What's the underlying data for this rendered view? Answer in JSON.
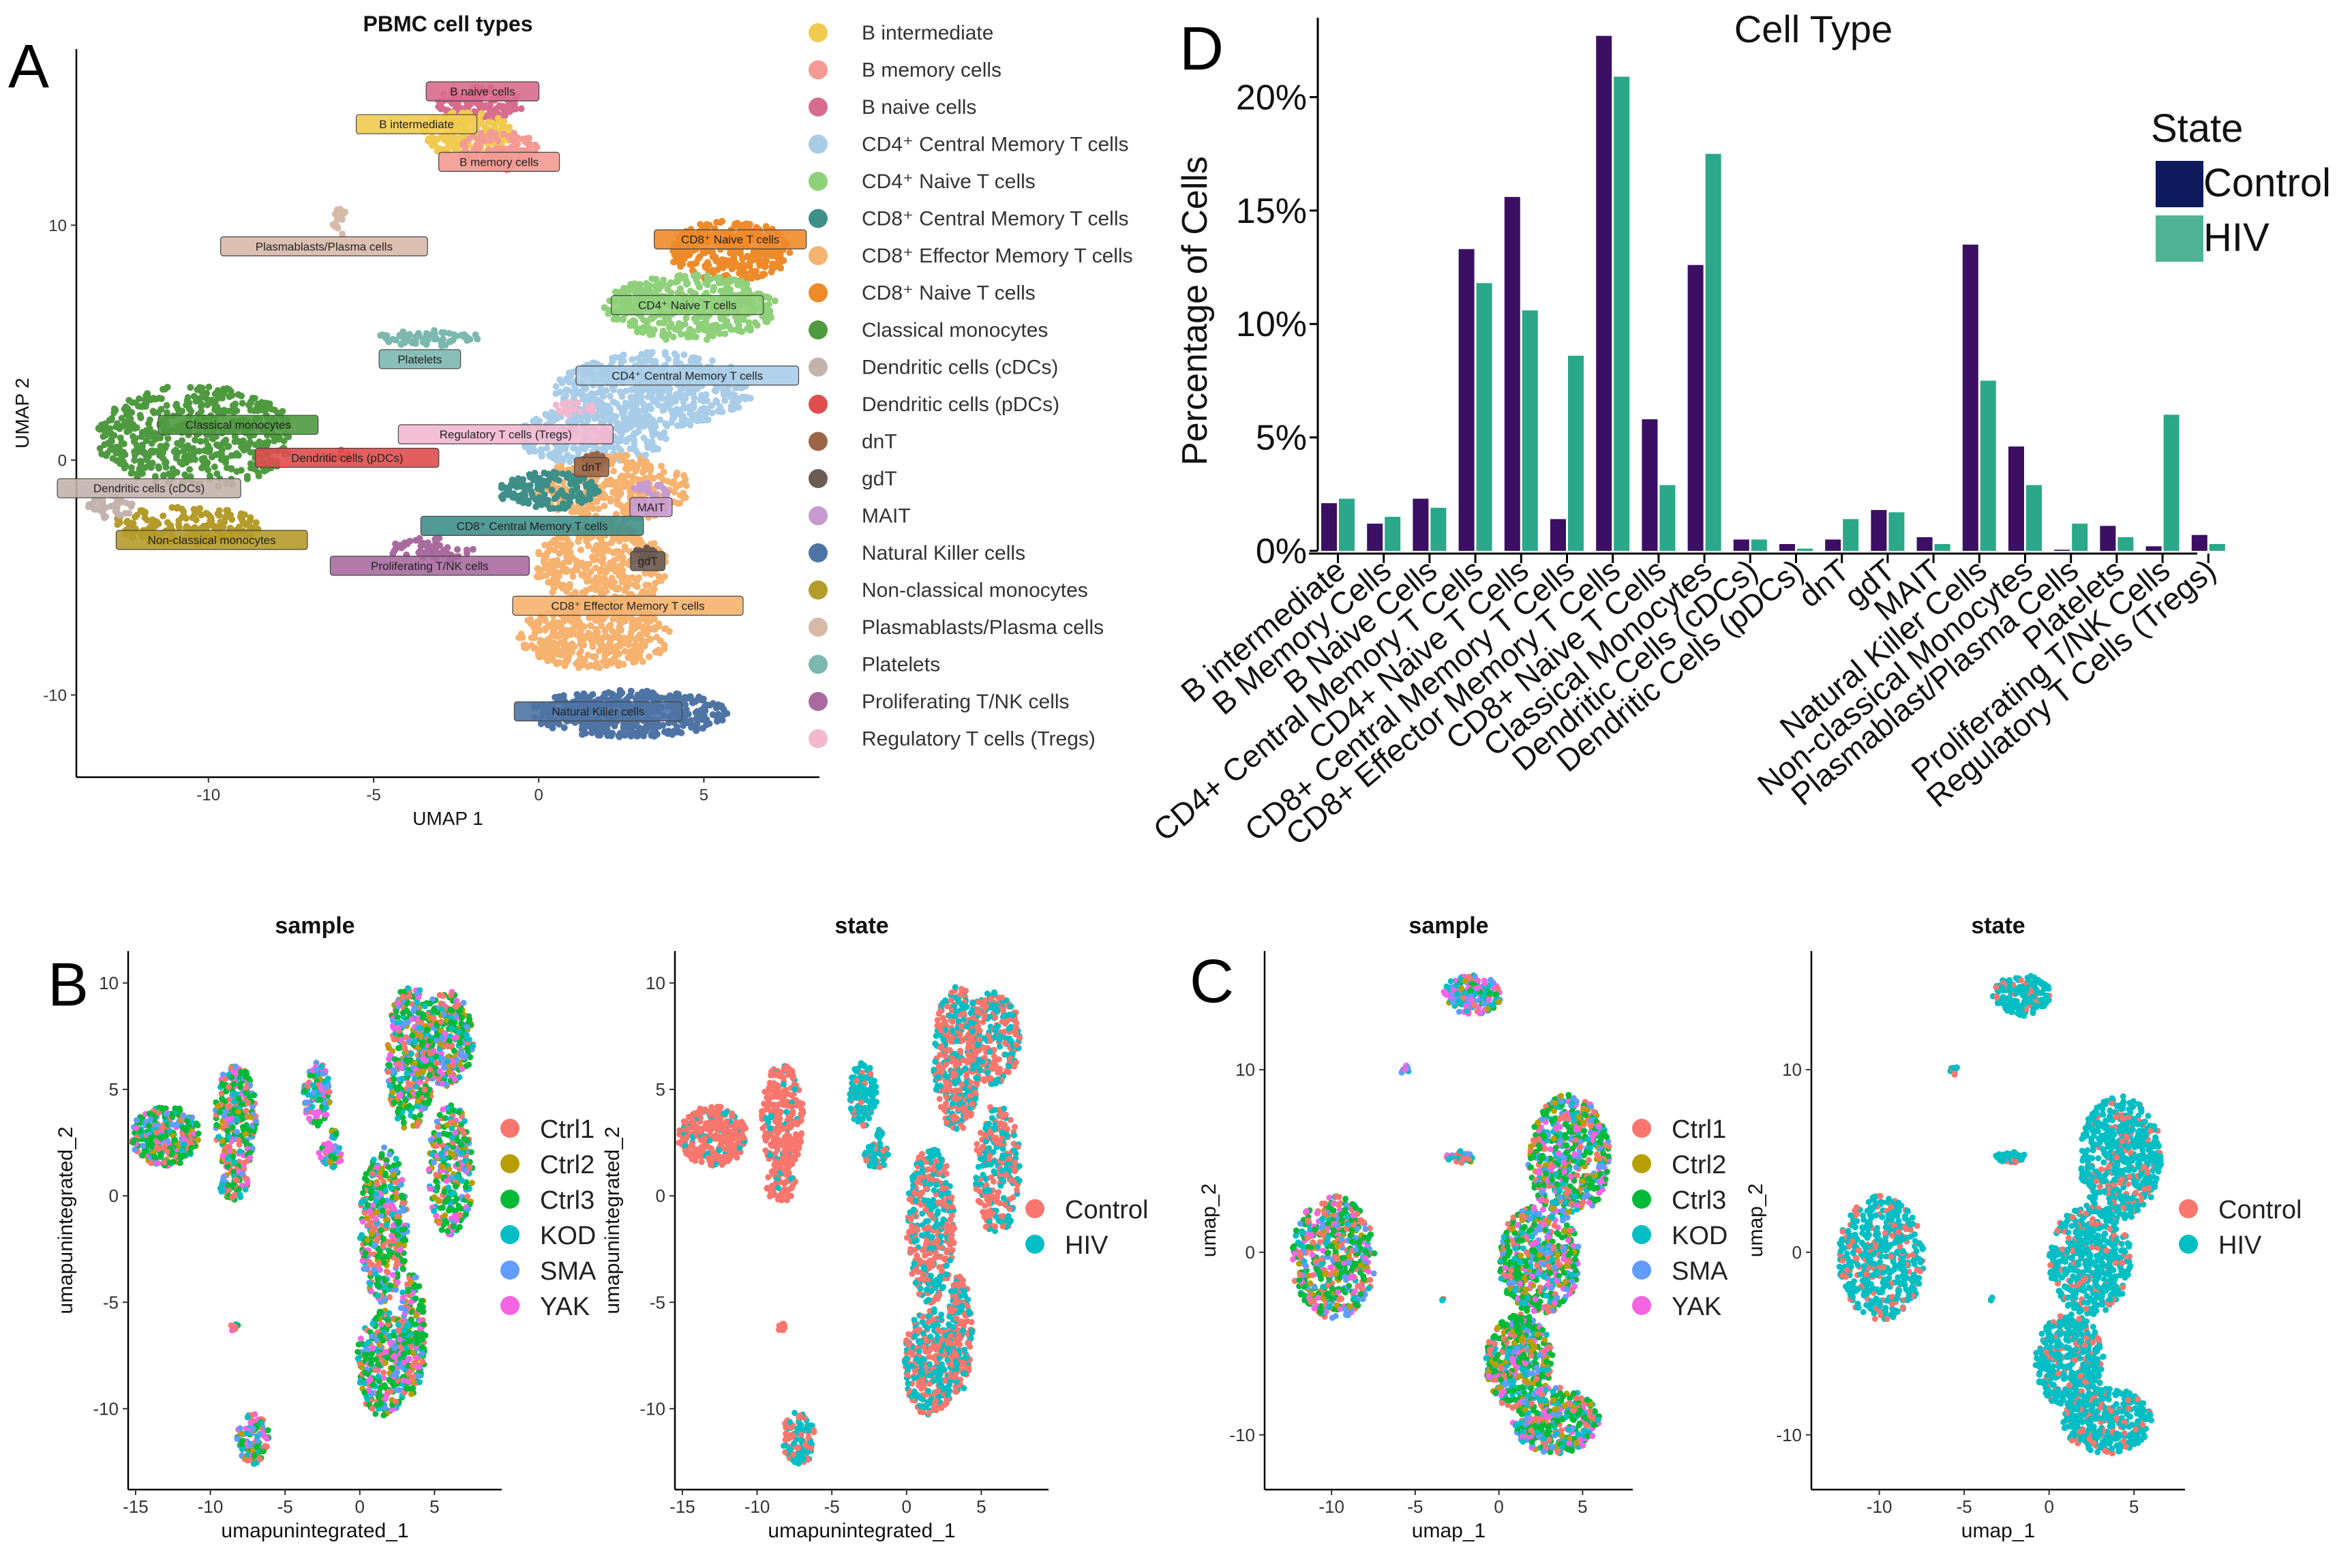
{
  "panel_labels": {
    "a": "A",
    "b": "B",
    "c": "C",
    "d": "D"
  },
  "colors": {
    "control": "#3b0f63",
    "hiv": "#2aa889",
    "legend_control": "#0d1a5c",
    "legend_hiv": "#4fb393",
    "sample_palette": [
      "#f8766d",
      "#b79f00",
      "#00ba38",
      "#00bfc4",
      "#619cff",
      "#f564e3"
    ],
    "state_palette": [
      "#f8766d",
      "#00bfc4"
    ]
  },
  "chart_data": [
    {
      "id": "A",
      "type": "scatter",
      "title": "PBMC cell types",
      "xlabel": "UMAP 1",
      "ylabel": "UMAP 2",
      "xlim": [
        -14,
        8.5
      ],
      "ylim": [
        -13.5,
        17.5
      ],
      "xticks": [
        -10,
        -5,
        0,
        5
      ],
      "yticks": [
        -10,
        0,
        10
      ],
      "legend": [
        {
          "label": "B intermediate",
          "color": "#f1cb4f"
        },
        {
          "label": "B memory cells",
          "color": "#f49a92"
        },
        {
          "label": "B naive cells",
          "color": "#d86c8e"
        },
        {
          "label": "CD4⁺ Central Memory T cells",
          "color": "#a9cde8"
        },
        {
          "label": "CD4⁺ Naive T cells",
          "color": "#8fd07a"
        },
        {
          "label": "CD8⁺ Central Memory T cells",
          "color": "#3f8f89"
        },
        {
          "label": "CD8⁺ Effector Memory T cells",
          "color": "#f6b26f"
        },
        {
          "label": "CD8⁺ Naive T cells",
          "color": "#ef8a29"
        },
        {
          "label": "Classical monocytes",
          "color": "#4f9a40"
        },
        {
          "label": "Dendritic cells (cDCs)",
          "color": "#c4b3ad"
        },
        {
          "label": "Dendritic cells (pDCs)",
          "color": "#e04d4d"
        },
        {
          "label": "dnT",
          "color": "#9b6548"
        },
        {
          "label": "gdT",
          "color": "#6b5b55"
        },
        {
          "label": "MAIT",
          "color": "#c79ad0"
        },
        {
          "label": "Natural Killer cells",
          "color": "#4e74a5"
        },
        {
          "label": "Non-classical monocytes",
          "color": "#b59b2a"
        },
        {
          "label": "Plasmablasts/Plasma cells",
          "color": "#d7b9a8"
        },
        {
          "label": "Platelets",
          "color": "#7cb8b0"
        },
        {
          "label": "Proliferating T/NK cells",
          "color": "#a96b9e"
        },
        {
          "label": "Regulatory T cells (Tregs)",
          "color": "#f3b8cf"
        }
      ],
      "annotations": [
        {
          "text": "B naive cells",
          "x": -1.7,
          "y": 15.7,
          "cls": 2
        },
        {
          "text": "B intermediate",
          "x": -3.7,
          "y": 14.3,
          "cls": 0
        },
        {
          "text": "B memory cells",
          "x": -1.2,
          "y": 12.7,
          "cls": 1
        },
        {
          "text": "Plasmablasts/Plasma cells",
          "x": -6.5,
          "y": 9.1,
          "cls": 16
        },
        {
          "text": "CD8⁺ Naive T cells",
          "x": 5.8,
          "y": 9.4,
          "cls": 7
        },
        {
          "text": "CD4⁺ Naive T cells",
          "x": 4.5,
          "y": 6.6,
          "cls": 4
        },
        {
          "text": "Platelets",
          "x": -3.6,
          "y": 4.3,
          "cls": 17
        },
        {
          "text": "CD4⁺ Central Memory T cells",
          "x": 4.5,
          "y": 3.6,
          "cls": 3
        },
        {
          "text": "Classical monocytes",
          "x": -9.1,
          "y": 1.5,
          "cls": 8
        },
        {
          "text": "Regulatory T cells (Tregs)",
          "x": -1.0,
          "y": 1.1,
          "cls": 19
        },
        {
          "text": "Dendritic cells (pDCs)",
          "x": -5.8,
          "y": 0.1,
          "cls": 10
        },
        {
          "text": "dnT",
          "x": 1.6,
          "y": -0.3,
          "cls": 11
        },
        {
          "text": "Dendritic cells (cDCs)",
          "x": -11.8,
          "y": -1.2,
          "cls": 9
        },
        {
          "text": "MAIT",
          "x": 3.4,
          "y": -2.0,
          "cls": 13
        },
        {
          "text": "CD8⁺ Central Memory T cells",
          "x": -0.2,
          "y": -2.8,
          "cls": 5
        },
        {
          "text": "Non-classical monocytes",
          "x": -9.9,
          "y": -3.4,
          "cls": 15
        },
        {
          "text": "Proliferating T/NK cells",
          "x": -3.3,
          "y": -4.5,
          "cls": 18
        },
        {
          "text": "gdT",
          "x": 3.3,
          "y": -4.3,
          "cls": 12
        },
        {
          "text": "CD8⁺ Effector Memory T cells",
          "x": 2.7,
          "y": -6.2,
          "cls": 6
        },
        {
          "text": "Natural Killer cells",
          "x": 1.8,
          "y": -10.7,
          "cls": 14
        }
      ]
    },
    {
      "id": "D",
      "type": "bar",
      "title": "Cell Type",
      "xlabel": "",
      "ylabel": "Percentage of Cells",
      "ylim": [
        0,
        23.5
      ],
      "yticks": [
        0,
        5,
        10,
        15,
        20
      ],
      "ytick_labels": [
        "0%",
        "5%",
        "10%",
        "15%",
        "20%"
      ],
      "legend_title": "State",
      "categories": [
        "B intermediate",
        "B Memory Cells",
        "B Naive Cells",
        "CD4+ Central Memory T Cells",
        "CD4+ Naive T Cells",
        "CD8+ Central Memory T Cells",
        "CD8+ Effector Memory T Cells",
        "CD8+ Naive T Cells",
        "Classical Monocytes",
        "Dendritic Cells (cDCs)",
        "Dendritic Cells (pDCs)",
        "dnT",
        "gdT",
        "MAIT",
        "Natural Killer Cells",
        "Non-classical Monocytes",
        "Plasmablast/Plasma Cells",
        "Platelets",
        "Proliferating T/NK Cells",
        "Regulatory T Cells (Tregs)"
      ],
      "series": [
        {
          "name": "Control",
          "values": [
            2.1,
            1.2,
            2.3,
            13.3,
            15.6,
            1.4,
            22.7,
            5.8,
            12.6,
            0.5,
            0.3,
            0.5,
            1.8,
            0.6,
            13.5,
            4.6,
            0.05,
            1.1,
            0.2,
            0.7
          ]
        },
        {
          "name": "HIV",
          "values": [
            2.3,
            1.5,
            1.9,
            11.8,
            10.6,
            8.6,
            20.9,
            2.9,
            17.5,
            0.5,
            0.1,
            1.4,
            1.7,
            0.3,
            7.5,
            2.9,
            1.2,
            0.6,
            6.0,
            0.3
          ]
        }
      ]
    },
    {
      "id": "B-sample",
      "type": "scatter",
      "title": "sample",
      "xlabel": "umapunintegrated_1",
      "ylabel": "umapunintegrated_2",
      "xlim": [
        -15.5,
        9.5
      ],
      "ylim": [
        -13.8,
        11.5
      ],
      "xticks": [
        -15,
        -10,
        -5,
        0,
        5
      ],
      "yticks": [
        -10,
        -5,
        0,
        5,
        10
      ],
      "legend": [
        "Ctrl1",
        "Ctrl2",
        "Ctrl3",
        "KOD",
        "SMA",
        "YAK"
      ]
    },
    {
      "id": "B-state",
      "type": "scatter",
      "title": "state",
      "xlabel": "umapunintegrated_1",
      "ylabel": "umapunintegrated_2",
      "xlim": [
        -15.5,
        9.5
      ],
      "ylim": [
        -13.8,
        11.5
      ],
      "xticks": [
        -15,
        -10,
        -5,
        0,
        5
      ],
      "yticks": [
        -10,
        -5,
        0,
        5,
        10
      ],
      "legend": [
        "Control",
        "HIV"
      ]
    },
    {
      "id": "C-sample",
      "type": "scatter",
      "title": "sample",
      "xlabel": "umap_1",
      "ylabel": "umap_2",
      "xlim": [
        -14,
        8
      ],
      "ylim": [
        -13,
        16.5
      ],
      "xticks": [
        -10,
        -5,
        0,
        5
      ],
      "yticks": [
        -10,
        0,
        10
      ],
      "legend": [
        "Ctrl1",
        "Ctrl2",
        "Ctrl3",
        "KOD",
        "SMA",
        "YAK"
      ]
    },
    {
      "id": "C-state",
      "type": "scatter",
      "title": "state",
      "xlabel": "umap_1",
      "ylabel": "umap_2",
      "xlim": [
        -14,
        8
      ],
      "ylim": [
        -13,
        16.5
      ],
      "xticks": [
        -10,
        -5,
        0,
        5
      ],
      "yticks": [
        -10,
        0,
        10
      ],
      "legend": [
        "Control",
        "HIV"
      ]
    }
  ]
}
